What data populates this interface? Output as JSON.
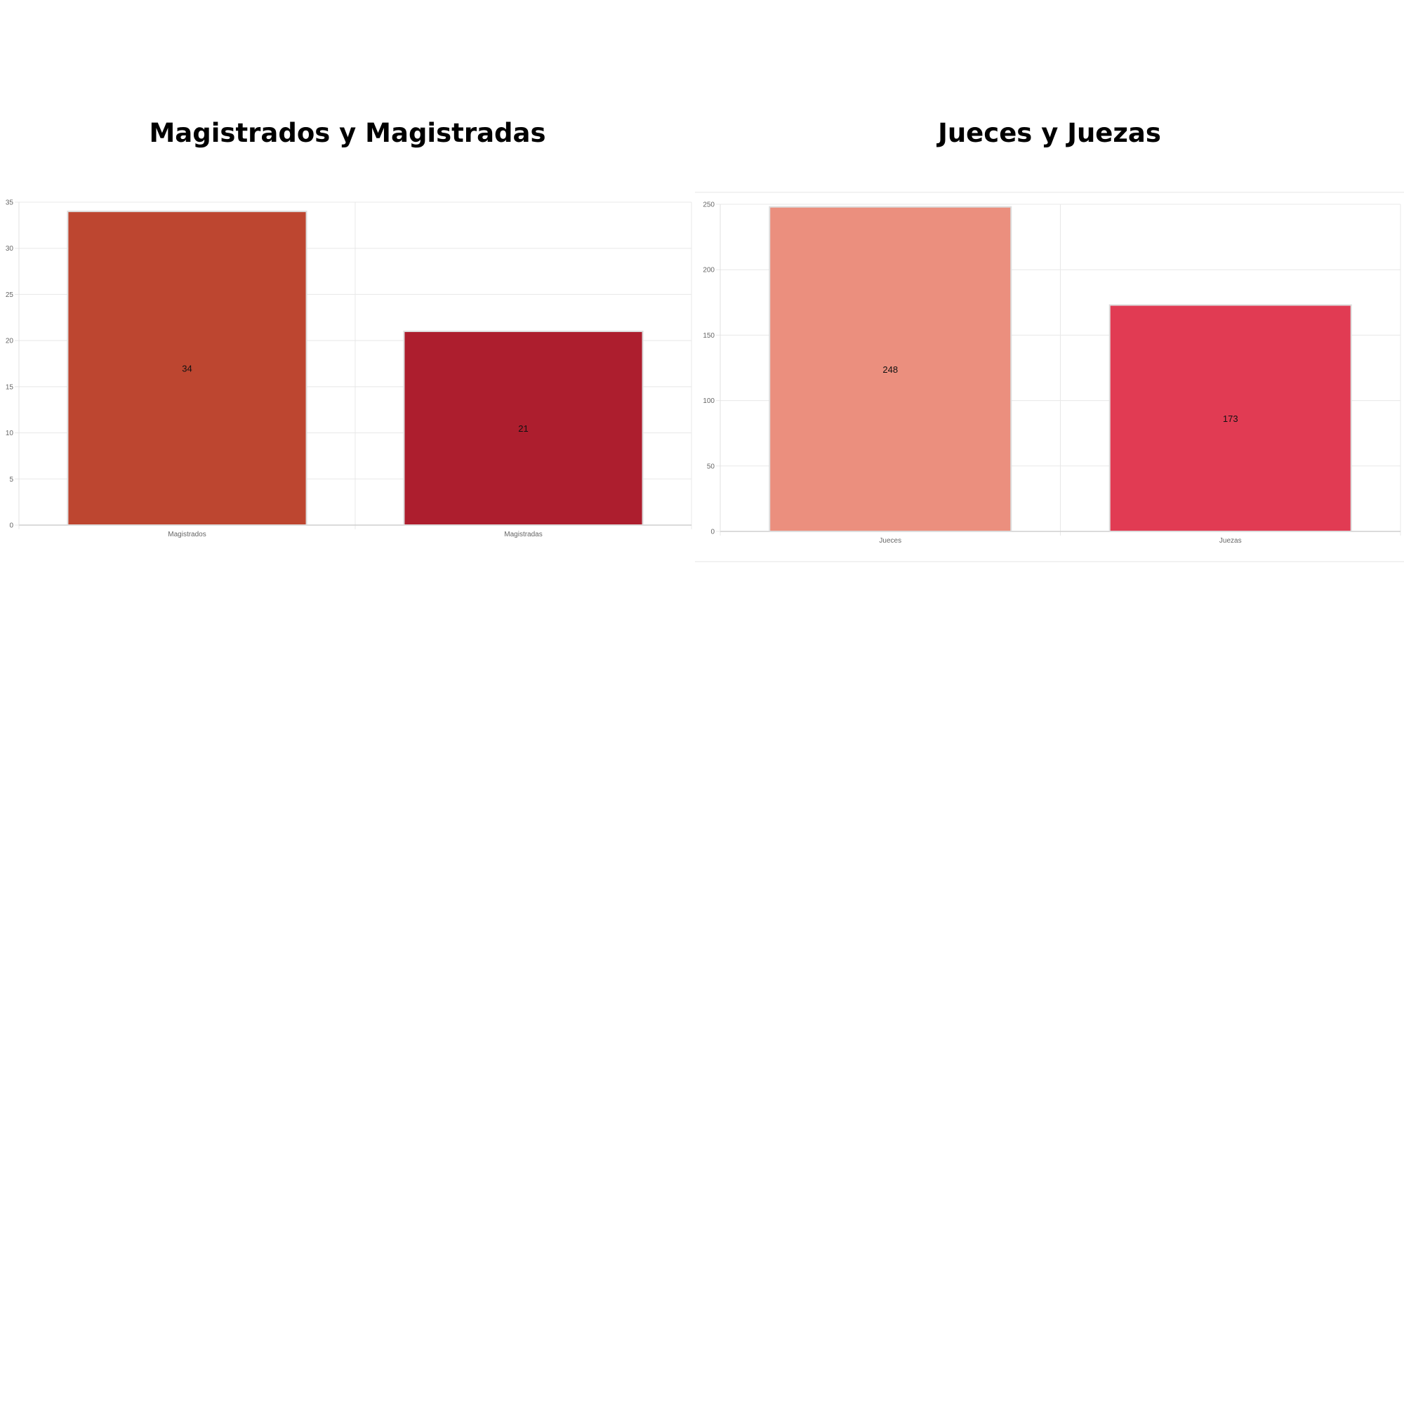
{
  "chart_data": [
    {
      "type": "bar",
      "title": "Magistrados y Magistradas",
      "categories": [
        "Magistrados",
        "Magistradas"
      ],
      "values": [
        34,
        21
      ],
      "colors": [
        "#bd4630",
        "#ad1e2e"
      ],
      "ylim": [
        0,
        35
      ],
      "yticks": [
        0,
        5,
        10,
        15,
        20,
        25,
        30,
        35
      ],
      "grid": true,
      "data_labels": true
    },
    {
      "type": "bar",
      "title": "Jueces y Juezas",
      "categories": [
        "Jueces",
        "Juezas"
      ],
      "values": [
        248,
        173
      ],
      "colors": [
        "#eb8f7e",
        "#e13b53"
      ],
      "ylim": [
        0,
        250
      ],
      "yticks": [
        0,
        50,
        100,
        150,
        200,
        250
      ],
      "grid": true,
      "data_labels": true
    }
  ]
}
